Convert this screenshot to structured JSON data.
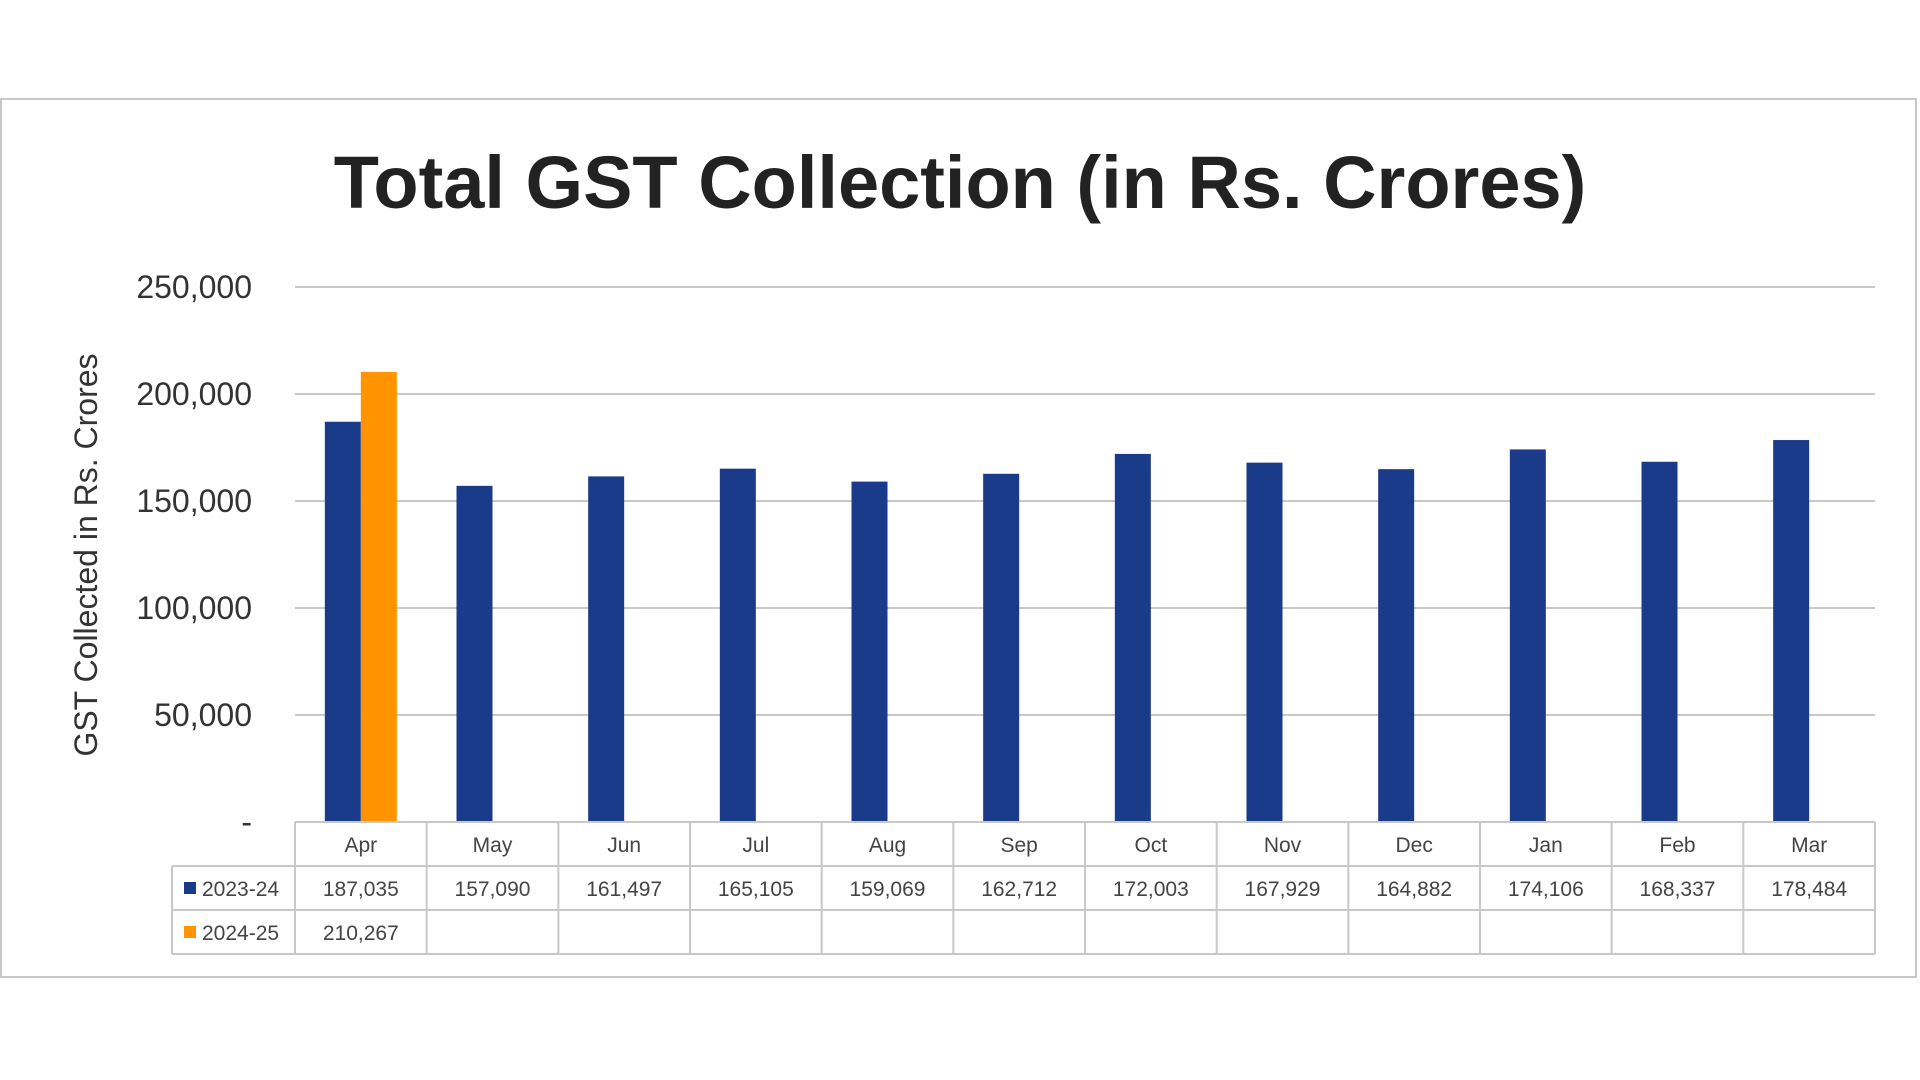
{
  "chart_data": {
    "type": "bar",
    "title": "Total GST Collection (in Rs. Crores)",
    "ylabel": "GST Collected in Rs. Crores",
    "xlabel": "",
    "ylim": [
      0,
      250000
    ],
    "y_ticks": [
      {
        "value": 0,
        "label": "-"
      },
      {
        "value": 50000,
        "label": "50,000"
      },
      {
        "value": 100000,
        "label": "100,000"
      },
      {
        "value": 150000,
        "label": "150,000"
      },
      {
        "value": 200000,
        "label": "200,000"
      },
      {
        "value": 250000,
        "label": "250,000"
      }
    ],
    "grid": true,
    "legend": "data-table",
    "categories": [
      "Apr",
      "May",
      "Jun",
      "Jul",
      "Aug",
      "Sep",
      "Oct",
      "Nov",
      "Dec",
      "Jan",
      "Feb",
      "Mar"
    ],
    "series": [
      {
        "name": "2023-24",
        "color": "#1a3a8a",
        "values": [
          187035,
          157090,
          161497,
          165105,
          159069,
          162712,
          172003,
          167929,
          164882,
          174106,
          168337,
          178484
        ],
        "labels": [
          "187,035",
          "157,090",
          "161,497",
          "165,105",
          "159,069",
          "162,712",
          "172,003",
          "167,929",
          "164,882",
          "174,106",
          "168,337",
          "178,484"
        ]
      },
      {
        "name": "2024-25",
        "color": "#ff9400",
        "values": [
          210267,
          null,
          null,
          null,
          null,
          null,
          null,
          null,
          null,
          null,
          null,
          null
        ],
        "labels": [
          "210,267",
          "",
          "",
          "",
          "",
          "",
          "",
          "",
          "",
          "",
          "",
          ""
        ]
      }
    ]
  }
}
